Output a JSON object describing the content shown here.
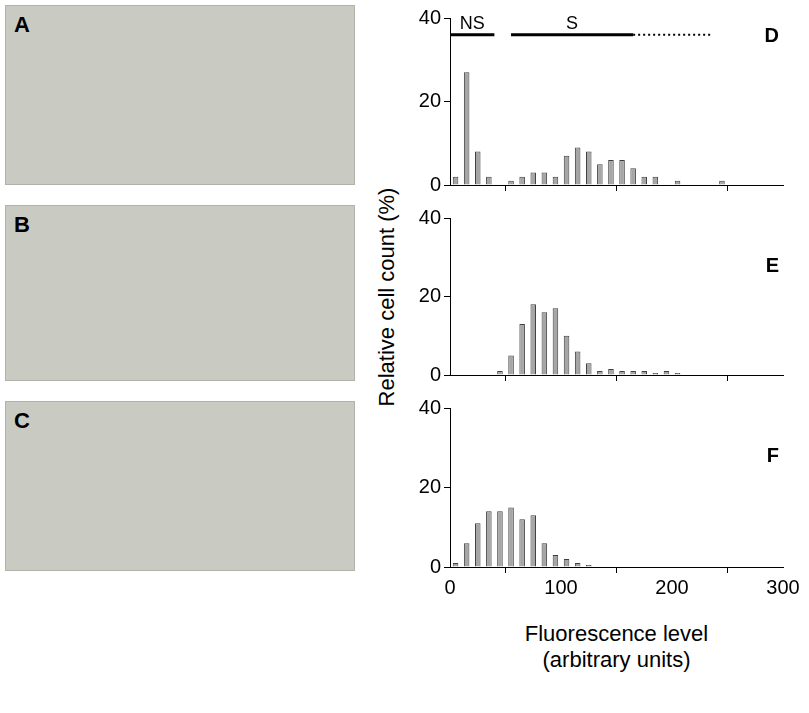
{
  "images": [
    {
      "label": "A"
    },
    {
      "label": "B"
    },
    {
      "label": "C"
    }
  ],
  "chart_data": [
    {
      "type": "histogram",
      "panel": "D",
      "bins": [
        0,
        10,
        20,
        30,
        40,
        50,
        60,
        70,
        80,
        90,
        100,
        110,
        120,
        130,
        140,
        150,
        160,
        170,
        180,
        190,
        200,
        210,
        220,
        230,
        240,
        250,
        260,
        270,
        280,
        290,
        300
      ],
      "counts": [
        2,
        27,
        8,
        2,
        0,
        1,
        2,
        3,
        3,
        2,
        7,
        9,
        8,
        5,
        6,
        6,
        4,
        2,
        2,
        0,
        1,
        0,
        0,
        0,
        1,
        0,
        0,
        0,
        0,
        0
      ],
      "color": "#a6a6a6",
      "xlim": [
        0,
        300
      ],
      "xticks": [
        0,
        100,
        200,
        300
      ],
      "ylim": [
        0,
        40
      ],
      "yticks": [
        0,
        20,
        40
      ],
      "grid": false,
      "tick_labels": "y",
      "annotations": [
        {
          "text": "NS",
          "x": [
            0,
            40
          ],
          "y": 36
        },
        {
          "text": "S",
          "x": [
            55,
            165
          ],
          "y": 36
        },
        {
          "x": [
            165,
            235
          ],
          "y": 36,
          "line_style": "dotted"
        }
      ]
    },
    {
      "type": "histogram",
      "panel": "E",
      "bins": [
        0,
        10,
        20,
        30,
        40,
        50,
        60,
        70,
        80,
        90,
        100,
        110,
        120,
        130,
        140,
        150,
        160,
        170,
        180,
        190,
        200,
        210,
        220,
        230,
        240,
        250,
        260,
        270,
        280,
        290,
        300
      ],
      "counts": [
        0,
        0,
        0,
        0,
        1,
        5,
        13,
        18,
        16,
        17,
        10,
        6,
        3,
        1,
        1.5,
        1,
        1,
        1,
        0.5,
        1,
        0.5,
        0,
        0,
        0,
        0,
        0,
        0,
        0,
        0,
        0
      ],
      "color": "#a6a6a6",
      "xlim": [
        0,
        300
      ],
      "xticks": [
        0,
        100,
        200,
        300
      ],
      "ylim": [
        0,
        40
      ],
      "yticks": [
        0,
        20,
        40
      ],
      "grid": false,
      "tick_labels": "y",
      "ylabel": "Relative cell count (%)"
    },
    {
      "type": "histogram",
      "panel": "F",
      "bins": [
        0,
        10,
        20,
        30,
        40,
        50,
        60,
        70,
        80,
        90,
        100,
        110,
        120,
        130,
        140,
        150,
        160,
        170,
        180,
        190,
        200,
        210,
        220,
        230,
        240,
        250,
        260,
        270,
        280,
        290,
        300
      ],
      "counts": [
        1,
        6,
        11,
        14,
        14,
        15,
        12,
        13,
        6,
        3,
        2,
        1,
        0.5,
        0,
        0,
        0,
        0,
        0,
        0,
        0,
        0,
        0,
        0,
        0,
        0,
        0,
        0,
        0,
        0,
        0
      ],
      "color": "#a6a6a6",
      "xlim": [
        0,
        300
      ],
      "xticks": [
        0,
        100,
        200,
        300
      ],
      "ylim": [
        0,
        40
      ],
      "yticks": [
        0,
        20,
        40
      ],
      "grid": false,
      "tick_labels": true,
      "xlabel": "Fluorescence level (arbitrary units)"
    }
  ]
}
